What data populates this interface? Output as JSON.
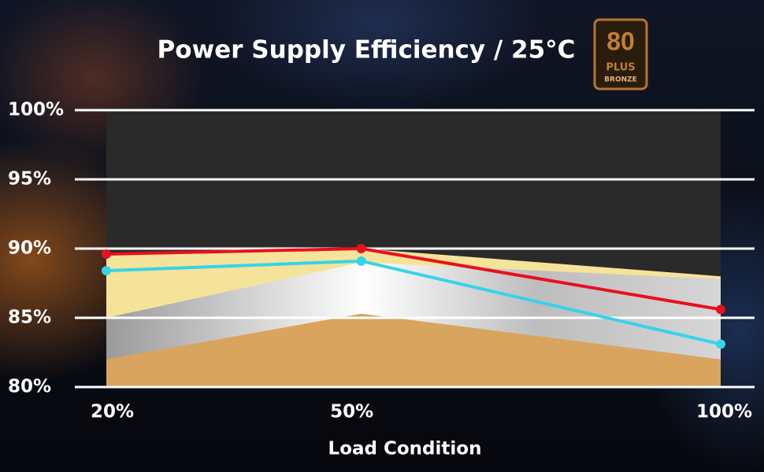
{
  "chart_data": {
    "type": "line",
    "title": "Power Supply Efficiency / 25°C",
    "badge": {
      "number": "80",
      "plus": "PLUS",
      "level": "BRONZE"
    },
    "x_label": "Load Condition",
    "categories": [
      "20%",
      "50%",
      "100%"
    ],
    "ylim": [
      80,
      100
    ],
    "yticks": [
      {
        "value": 80,
        "label": "80%"
      },
      {
        "value": 85,
        "label": "85%"
      },
      {
        "value": 90,
        "label": "90%"
      },
      {
        "value": 95,
        "label": "95%"
      },
      {
        "value": 100,
        "label": "100%"
      }
    ],
    "grid": true,
    "bands": [
      {
        "color": "#f6e39a",
        "values": [
          89.7,
          90,
          88
        ]
      },
      {
        "color": "silver",
        "values": [
          85,
          89,
          87.8
        ]
      },
      {
        "color": "#d9a45e",
        "values": [
          82,
          85.3,
          82
        ]
      }
    ],
    "series": [
      {
        "color": "#e8101e",
        "values": [
          89.6,
          90,
          85.6
        ]
      },
      {
        "color": "#35d4e8",
        "values": [
          88.4,
          89.1,
          83.1
        ]
      }
    ]
  }
}
